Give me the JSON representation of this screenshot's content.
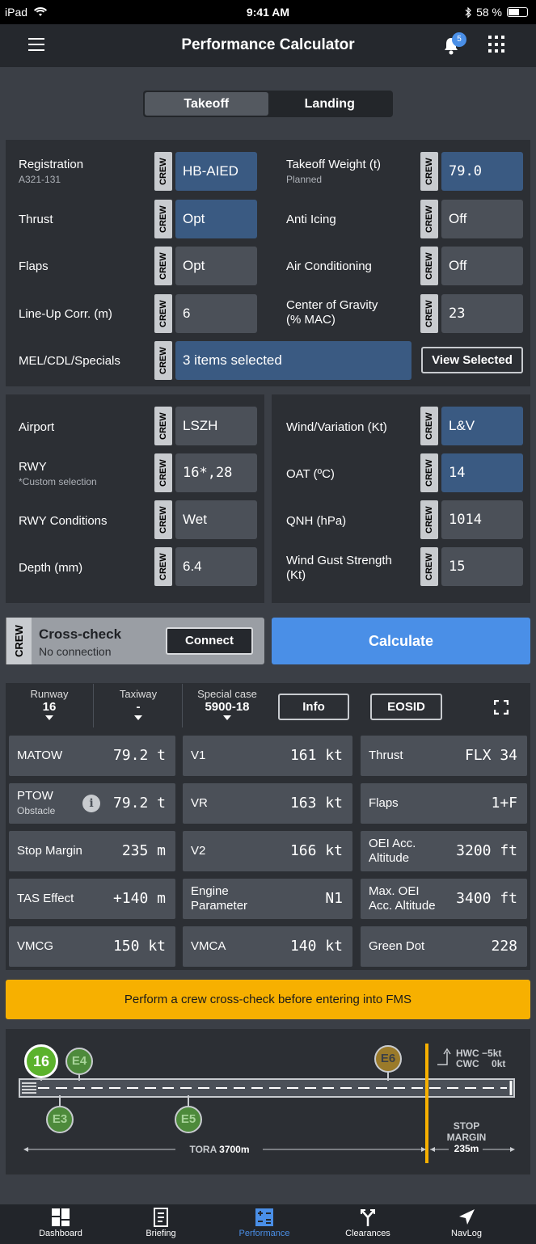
{
  "status": {
    "device": "iPad",
    "time": "9:41 AM",
    "battery": "58 %",
    "battery_level": 0.58
  },
  "nav": {
    "title": "Performance Calculator",
    "badge": "5"
  },
  "tabs": {
    "takeoff": "Takeoff",
    "landing": "Landing"
  },
  "crew_label": "CREW",
  "aircraft": {
    "registration": {
      "label": "Registration",
      "sub": "A321-131",
      "value": "HB-AIED"
    },
    "thrust": {
      "label": "Thrust",
      "value": "Opt"
    },
    "flaps": {
      "label": "Flaps",
      "value": "Opt"
    },
    "lineup": {
      "label": "Line-Up Corr. (m)",
      "value": "6"
    },
    "mel": {
      "label": "MEL/CDL/Specials",
      "value": "3 items selected",
      "button": "View Selected"
    },
    "tow": {
      "label": "Takeoff Weight (t)",
      "sub": "Planned",
      "value": "79.0"
    },
    "anti_icing": {
      "label": "Anti Icing",
      "value": "Off"
    },
    "air_cond": {
      "label": "Air Conditioning",
      "value": "Off"
    },
    "cog": {
      "label1": "Center of Gravity",
      "label2": "(% MAC)",
      "value": "23"
    }
  },
  "airport": {
    "airport": {
      "label": "Airport",
      "value": "LSZH"
    },
    "rwy": {
      "label": "RWY",
      "sub": "*Custom selection",
      "value": "16*,28"
    },
    "rwy_cond": {
      "label": "RWY Conditions",
      "value": "Wet"
    },
    "depth": {
      "label": "Depth (mm)",
      "value": "6.4"
    },
    "wind": {
      "label": "Wind/Variation (Kt)",
      "value": "L&V"
    },
    "oat": {
      "label": "OAT (ºC)",
      "value": "14"
    },
    "qnh": {
      "label": "QNH (hPa)",
      "value": "1014"
    },
    "gust": {
      "label1": "Wind Gust Strength",
      "label2": "(Kt)",
      "value": "15"
    }
  },
  "crosscheck": {
    "title": "Cross-check",
    "status": "No connection",
    "button": "Connect"
  },
  "calculate": "Calculate",
  "results_header": {
    "runway": {
      "label": "Runway",
      "value": "16"
    },
    "taxiway": {
      "label": "Taxiway",
      "value": "-"
    },
    "special": {
      "label": "Special case",
      "value": "5900-18"
    },
    "info": "Info",
    "eosid": "EOSID"
  },
  "results": {
    "matow": {
      "label": "MATOW",
      "value": "79.2 t"
    },
    "ptow": {
      "label": "PTOW",
      "sub": "Obstacle",
      "value": "79.2 t"
    },
    "stop_margin": {
      "label": "Stop Margin",
      "value": "235 m"
    },
    "tas": {
      "label": "TAS Effect",
      "value": "+140 m"
    },
    "vmcg": {
      "label": "VMCG",
      "value": "150 kt"
    },
    "v1": {
      "label": "V1",
      "value": "161 kt"
    },
    "vr": {
      "label": "VR",
      "value": "163 kt"
    },
    "v2": {
      "label": "V2",
      "value": "166 kt"
    },
    "engine": {
      "label1": "Engine",
      "label2": "Parameter",
      "value": "N1"
    },
    "vmca": {
      "label": "VMCA",
      "value": "140 kt"
    },
    "thrust": {
      "label": "Thrust",
      "value": "FLX 34"
    },
    "flaps": {
      "label": "Flaps",
      "value": "1+F"
    },
    "oei_acc": {
      "label1": "OEI Acc.",
      "label2": "Altitude",
      "value": "3200 ft"
    },
    "max_oei": {
      "label1": "Max. OEI",
      "label2": "Acc. Altitude",
      "value": "3400 ft"
    },
    "green_dot": {
      "label": "Green Dot",
      "value": "228"
    }
  },
  "warning": "Perform a crew cross-check before entering into FMS",
  "diagram": {
    "rwy": "16",
    "e4": "E4",
    "e6": "E6",
    "e3": "E3",
    "e5": "E5",
    "hwc": "HWC",
    "hwc_v": "−5kt",
    "cwc": "CWC",
    "cwc_v": "0kt",
    "tora": "TORA",
    "tora_v": "3700m",
    "stop1": "STOP",
    "stop2": "MARGIN",
    "stop_v": "235m"
  },
  "tabbar": [
    "Dashboard",
    "Briefing",
    "Performance",
    "Clearances",
    "NavLog"
  ],
  "colors": {
    "accent": "#4a8fe7",
    "warning": "#f7b000",
    "field_blue": "#3a5a82"
  }
}
